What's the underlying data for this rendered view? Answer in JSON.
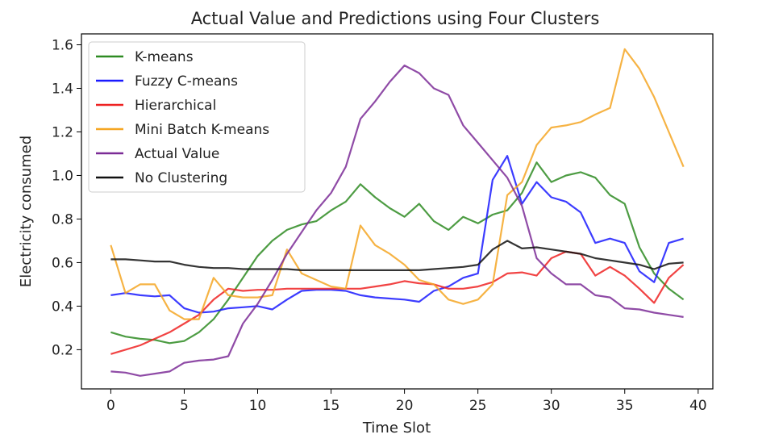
{
  "chart_data": {
    "type": "line",
    "title": "Actual Value and Predictions using Four Clusters",
    "xlabel": "Time Slot",
    "ylabel": "Electricity consumed",
    "xlim": [
      -2.0,
      41.0
    ],
    "ylim": [
      0.02,
      1.65
    ],
    "xticks": [
      0,
      5,
      10,
      15,
      20,
      25,
      30,
      35,
      40
    ],
    "yticks": [
      0.2,
      0.4,
      0.6,
      0.8,
      1.0,
      1.2,
      1.4,
      1.6
    ],
    "xtick_labels": [
      "0",
      "5",
      "10",
      "15",
      "20",
      "25",
      "30",
      "35",
      "40"
    ],
    "ytick_labels": [
      "0.2",
      "0.4",
      "0.6",
      "0.8",
      "1.0",
      "1.2",
      "1.4",
      "1.6"
    ],
    "grid": false,
    "legend_position": "top-left",
    "x": [
      0,
      1,
      2,
      3,
      4,
      5,
      6,
      7,
      8,
      9,
      10,
      11,
      12,
      13,
      14,
      15,
      16,
      17,
      18,
      19,
      20,
      21,
      22,
      23,
      24,
      25,
      26,
      27,
      28,
      29,
      30,
      31,
      32,
      33,
      34,
      35,
      36,
      37,
      38,
      39
    ],
    "series": [
      {
        "name": "K-means",
        "color": "#2e8b22",
        "values": [
          0.28,
          0.26,
          0.25,
          0.245,
          0.23,
          0.24,
          0.28,
          0.34,
          0.43,
          0.53,
          0.63,
          0.7,
          0.75,
          0.775,
          0.79,
          0.84,
          0.88,
          0.96,
          0.9,
          0.85,
          0.81,
          0.87,
          0.79,
          0.75,
          0.81,
          0.78,
          0.82,
          0.84,
          0.92,
          1.06,
          0.97,
          1.0,
          1.015,
          0.99,
          0.91,
          0.87,
          0.67,
          0.55,
          0.48,
          0.43
        ]
      },
      {
        "name": "Fuzzy C-means",
        "color": "#1a1aff",
        "values": [
          0.45,
          0.46,
          0.45,
          0.445,
          0.45,
          0.39,
          0.37,
          0.375,
          0.39,
          0.395,
          0.4,
          0.385,
          0.43,
          0.47,
          0.475,
          0.475,
          0.47,
          0.45,
          0.44,
          0.435,
          0.43,
          0.42,
          0.47,
          0.49,
          0.53,
          0.55,
          0.98,
          1.09,
          0.87,
          0.97,
          0.9,
          0.88,
          0.83,
          0.69,
          0.71,
          0.69,
          0.56,
          0.51,
          0.69,
          0.71
        ]
      },
      {
        "name": "Hierarchical",
        "color": "#ee2222",
        "values": [
          0.18,
          0.2,
          0.22,
          0.25,
          0.28,
          0.32,
          0.36,
          0.43,
          0.48,
          0.47,
          0.475,
          0.475,
          0.48,
          0.48,
          0.48,
          0.48,
          0.48,
          0.48,
          0.49,
          0.5,
          0.515,
          0.505,
          0.5,
          0.48,
          0.48,
          0.49,
          0.51,
          0.55,
          0.555,
          0.54,
          0.62,
          0.65,
          0.64,
          0.54,
          0.58,
          0.54,
          0.48,
          0.415,
          0.53,
          0.59
        ]
      },
      {
        "name": "Mini Batch K-means",
        "color": "#f5a623",
        "values": [
          0.68,
          0.46,
          0.5,
          0.5,
          0.38,
          0.34,
          0.34,
          0.53,
          0.45,
          0.44,
          0.44,
          0.45,
          0.66,
          0.55,
          0.52,
          0.49,
          0.48,
          0.77,
          0.68,
          0.64,
          0.59,
          0.52,
          0.5,
          0.43,
          0.41,
          0.43,
          0.5,
          0.91,
          0.97,
          1.14,
          1.22,
          1.23,
          1.245,
          1.28,
          1.31,
          1.58,
          1.49,
          1.36,
          1.2,
          1.04
        ]
      },
      {
        "name": "Actual Value",
        "color": "#7b2b96",
        "values": [
          0.1,
          0.095,
          0.08,
          0.09,
          0.1,
          0.14,
          0.15,
          0.155,
          0.17,
          0.32,
          0.41,
          0.52,
          0.64,
          0.74,
          0.84,
          0.92,
          1.04,
          1.26,
          1.34,
          1.43,
          1.505,
          1.47,
          1.4,
          1.37,
          1.23,
          1.15,
          1.07,
          0.99,
          0.86,
          0.62,
          0.55,
          0.5,
          0.5,
          0.45,
          0.44,
          0.39,
          0.385,
          0.37,
          0.36,
          0.35
        ]
      },
      {
        "name": "No Clustering",
        "color": "#111111",
        "values": [
          0.615,
          0.615,
          0.61,
          0.605,
          0.605,
          0.59,
          0.58,
          0.575,
          0.575,
          0.57,
          0.57,
          0.57,
          0.57,
          0.565,
          0.565,
          0.565,
          0.565,
          0.565,
          0.565,
          0.565,
          0.565,
          0.565,
          0.57,
          0.575,
          0.58,
          0.59,
          0.66,
          0.7,
          0.665,
          0.67,
          0.66,
          0.65,
          0.64,
          0.62,
          0.61,
          0.6,
          0.59,
          0.57,
          0.595,
          0.6
        ]
      }
    ]
  }
}
